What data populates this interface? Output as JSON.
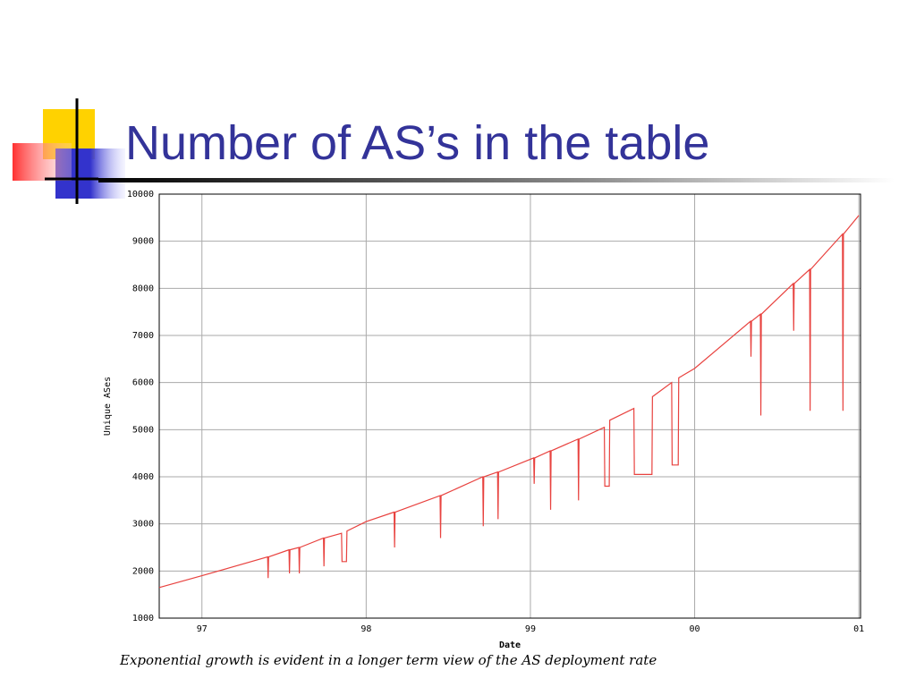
{
  "chart_data": {
    "type": "line",
    "title": "Number of AS’s in the table",
    "xlabel": "Date",
    "ylabel": "Unique ASes",
    "caption": "Exponential growth is evident in a longer term view of the AS deployment rate",
    "color": "#e8423f",
    "grid": true,
    "xlim": [
      1996.74,
      2001.01
    ],
    "ylim": [
      1000,
      10000
    ],
    "xticks": [
      {
        "value": 1997,
        "label": "97"
      },
      {
        "value": 1998,
        "label": "98"
      },
      {
        "value": 1999,
        "label": "99"
      },
      {
        "value": 2000,
        "label": "00"
      },
      {
        "value": 2001,
        "label": "01"
      }
    ],
    "yticks": [
      1000,
      2000,
      3000,
      4000,
      5000,
      6000,
      7000,
      8000,
      9000,
      10000
    ],
    "x": [
      1996.74,
      1997.0,
      1997.4,
      1997.403,
      1997.406,
      1997.53,
      1997.533,
      1997.536,
      1997.59,
      1997.593,
      1997.596,
      1997.74,
      1997.743,
      1997.746,
      1997.85,
      1997.853,
      1997.88,
      1997.883,
      1998.0,
      1998.17,
      1998.173,
      1998.176,
      1998.45,
      1998.453,
      1998.456,
      1998.71,
      1998.713,
      1998.716,
      1998.8,
      1998.803,
      1998.806,
      1999.02,
      1999.023,
      1999.026,
      1999.12,
      1999.123,
      1999.126,
      1999.29,
      1999.293,
      1999.296,
      1999.45,
      1999.453,
      1999.48,
      1999.483,
      1999.63,
      1999.633,
      1999.74,
      1999.743,
      1999.86,
      1999.863,
      1999.9,
      1999.903,
      2000.0,
      2000.34,
      2000.343,
      2000.346,
      2000.4,
      2000.403,
      2000.406,
      2000.6,
      2000.603,
      2000.606,
      2000.7,
      2000.703,
      2000.706,
      2000.9,
      2000.903,
      2000.906,
      2001.0
    ],
    "values": [
      1650,
      1900,
      2300,
      1850,
      2300,
      2450,
      1950,
      2450,
      2500,
      1950,
      2500,
      2700,
      2100,
      2700,
      2800,
      2200,
      2200,
      2850,
      3050,
      3250,
      2500,
      3250,
      3600,
      2700,
      3600,
      4000,
      2950,
      4000,
      4100,
      3100,
      4100,
      4400,
      3850,
      4400,
      4550,
      3300,
      4550,
      4800,
      3500,
      4800,
      5050,
      3800,
      3800,
      5200,
      5450,
      4050,
      4050,
      5700,
      6000,
      4250,
      4250,
      6100,
      6300,
      7300,
      6550,
      7300,
      7450,
      5300,
      7450,
      8100,
      7100,
      8100,
      8400,
      5400,
      8400,
      9150,
      5400,
      9150,
      9550
    ]
  }
}
